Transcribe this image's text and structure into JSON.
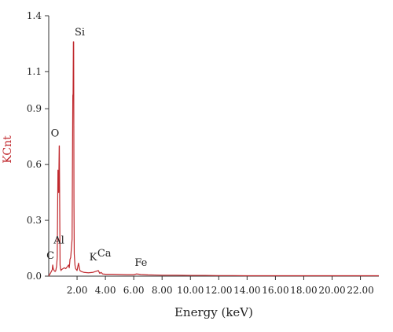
{
  "chart_data": {
    "type": "line",
    "title": "",
    "xlabel": "Energy (keV)",
    "ylabel": "KCnt",
    "xlim": [
      0,
      23.3
    ],
    "ylim": [
      0,
      1.4
    ],
    "x_ticks": [
      2,
      4,
      6,
      8,
      10,
      12,
      14,
      16,
      18,
      20,
      22
    ],
    "x_tick_labels": [
      "2.00",
      "4.00",
      "6.00",
      "8.00",
      "10.00",
      "12.00",
      "14.00",
      "16.00",
      "18.00",
      "20.00",
      "22.00"
    ],
    "y_ticks": [
      0,
      0.3,
      0.6,
      0.9,
      1.1,
      1.4
    ],
    "y_tick_labels": [
      "0.0",
      "0.3",
      "0.6",
      "0.9",
      "1.1",
      "1.4"
    ],
    "grid": false,
    "legend": "none",
    "colors": {
      "line": "#c0282d",
      "axis_label": "#c0282d",
      "text": "#222222",
      "axis": "#333333"
    },
    "series": [
      {
        "x": [
          0.0,
          0.15,
          0.25,
          0.28,
          0.32,
          0.38,
          0.45,
          0.5,
          0.52,
          0.55,
          0.6,
          0.65,
          0.7,
          0.74,
          0.75,
          0.78,
          0.8,
          0.83,
          0.87,
          0.9,
          1.0,
          1.1,
          1.2,
          1.3,
          1.4,
          1.45,
          1.48,
          1.5,
          1.55,
          1.6,
          1.65,
          1.7,
          1.72,
          1.74,
          1.76,
          1.78,
          1.8,
          1.85,
          1.9,
          2.0,
          2.05,
          2.1,
          2.2,
          2.3,
          2.5,
          2.8,
          3.1,
          3.3,
          3.5,
          3.6,
          3.7,
          3.8,
          4.0,
          4.5,
          5.0,
          5.5,
          6.0,
          6.2,
          6.4,
          6.5,
          7.0,
          7.5,
          8.0,
          9.0,
          10.0,
          11.0,
          12.0,
          13.0,
          14.0,
          15.0,
          16.0,
          17.0,
          18.0,
          19.0,
          20.0,
          21.0,
          22.0,
          23.3
        ],
        "y": [
          0.0,
          0.02,
          0.035,
          0.06,
          0.04,
          0.03,
          0.025,
          0.03,
          0.04,
          0.05,
          0.1,
          0.57,
          0.45,
          0.7,
          0.7,
          0.3,
          0.06,
          0.04,
          0.03,
          0.035,
          0.04,
          0.045,
          0.04,
          0.05,
          0.06,
          0.045,
          0.07,
          0.09,
          0.1,
          0.15,
          0.2,
          0.97,
          0.98,
          1.26,
          1.26,
          0.4,
          0.12,
          0.06,
          0.04,
          0.03,
          0.05,
          0.07,
          0.03,
          0.025,
          0.02,
          0.018,
          0.02,
          0.025,
          0.03,
          0.015,
          0.02,
          0.012,
          0.01,
          0.01,
          0.009,
          0.008,
          0.008,
          0.012,
          0.01,
          0.009,
          0.007,
          0.006,
          0.005,
          0.005,
          0.004,
          0.004,
          0.003,
          0.003,
          0.002,
          0.002,
          0.002,
          0.002,
          0.002,
          0.002,
          0.002,
          0.002,
          0.002,
          0.002
        ]
      }
    ],
    "annotations": [
      {
        "text": "C",
        "x": 0.28,
        "y": 0.06
      },
      {
        "text": "O",
        "x": 0.55,
        "y": 0.7
      },
      {
        "text": "Al",
        "x": 1.5,
        "y": 0.09
      },
      {
        "text": "Si",
        "x": 1.75,
        "y": 1.26
      },
      {
        "text": "K",
        "x": 3.3,
        "y": 0.025
      },
      {
        "text": "Ca",
        "x": 3.7,
        "y": 0.03
      },
      {
        "text": "Fe",
        "x": 6.4,
        "y": 0.012
      }
    ]
  }
}
